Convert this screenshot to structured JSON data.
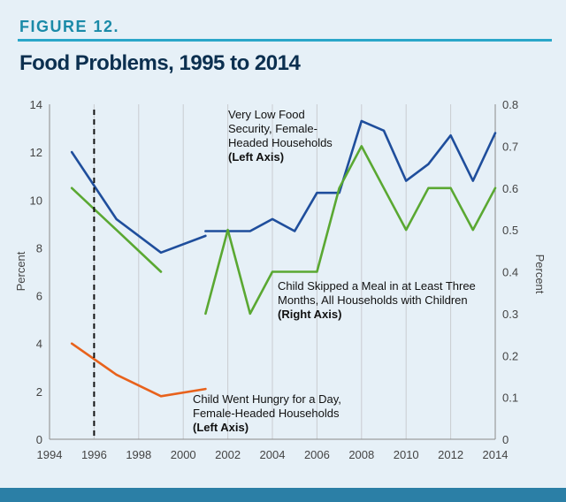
{
  "figure_label": "FIGURE 12.",
  "title": "Food Problems, 1995 to 2014",
  "chart_data": {
    "type": "line",
    "xlim": [
      1994,
      2014
    ],
    "x_ticks": [
      "1994",
      "1996",
      "1998",
      "2000",
      "2002",
      "2004",
      "2006",
      "2008",
      "2010",
      "2012",
      "2014"
    ],
    "y_left": {
      "label": "Percent",
      "lim": [
        0,
        14
      ],
      "ticks": [
        "0",
        "2",
        "4",
        "6",
        "8",
        "10",
        "12",
        "14"
      ]
    },
    "y_right": {
      "label": "Percent",
      "lim": [
        0,
        0.8
      ],
      "ticks": [
        "0",
        "0.1",
        "0.2",
        "0.3",
        "0.4",
        "0.5",
        "0.6",
        "0.7",
        "0.8"
      ]
    },
    "reference_line_x": 1996,
    "series": [
      {
        "axis": "left",
        "color": "#1f4e9c",
        "segments": [
          {
            "x": [
              1995,
              1997,
              1999,
              2001
            ],
            "y": [
              12.0,
              9.2,
              7.8,
              8.5
            ]
          },
          {
            "x": [
              2001,
              2002,
              2003,
              2004,
              2005,
              2006,
              2007,
              2008,
              2009,
              2010,
              2011,
              2012,
              2013,
              2014
            ],
            "y": [
              8.7,
              8.7,
              8.7,
              9.2,
              8.7,
              10.3,
              10.3,
              13.3,
              12.9,
              10.8,
              11.5,
              12.7,
              10.8,
              12.8
            ]
          }
        ],
        "annotation": [
          "Very Low Food",
          "Security, Female-",
          "Headed Households",
          "(Left Axis)"
        ]
      },
      {
        "axis": "right",
        "color": "#5aa832",
        "segments": [
          {
            "x": [
              1995,
              1997,
              1999
            ],
            "y": [
              0.6,
              0.5,
              0.4
            ]
          },
          {
            "x": [
              2001,
              2002,
              2003,
              2004,
              2005,
              2006,
              2007,
              2008,
              2009,
              2010,
              2011,
              2012,
              2013,
              2014
            ],
            "y": [
              0.3,
              0.5,
              0.3,
              0.4,
              0.4,
              0.4,
              0.6,
              0.7,
              0.6,
              0.5,
              0.6,
              0.6,
              0.5,
              0.6
            ]
          }
        ],
        "annotation": [
          "Child Skipped a Meal in at Least Three",
          "Months, All Households with Children",
          "(Right Axis)"
        ]
      },
      {
        "axis": "left",
        "color": "#e8621c",
        "segments": [
          {
            "x": [
              1995,
              1997,
              1999,
              2001
            ],
            "y": [
              4.0,
              2.7,
              1.8,
              2.1
            ]
          }
        ],
        "annotation": [
          "Child Went Hungry for a Day,",
          "Female-Headed Households",
          "(Left Axis)"
        ]
      }
    ]
  }
}
